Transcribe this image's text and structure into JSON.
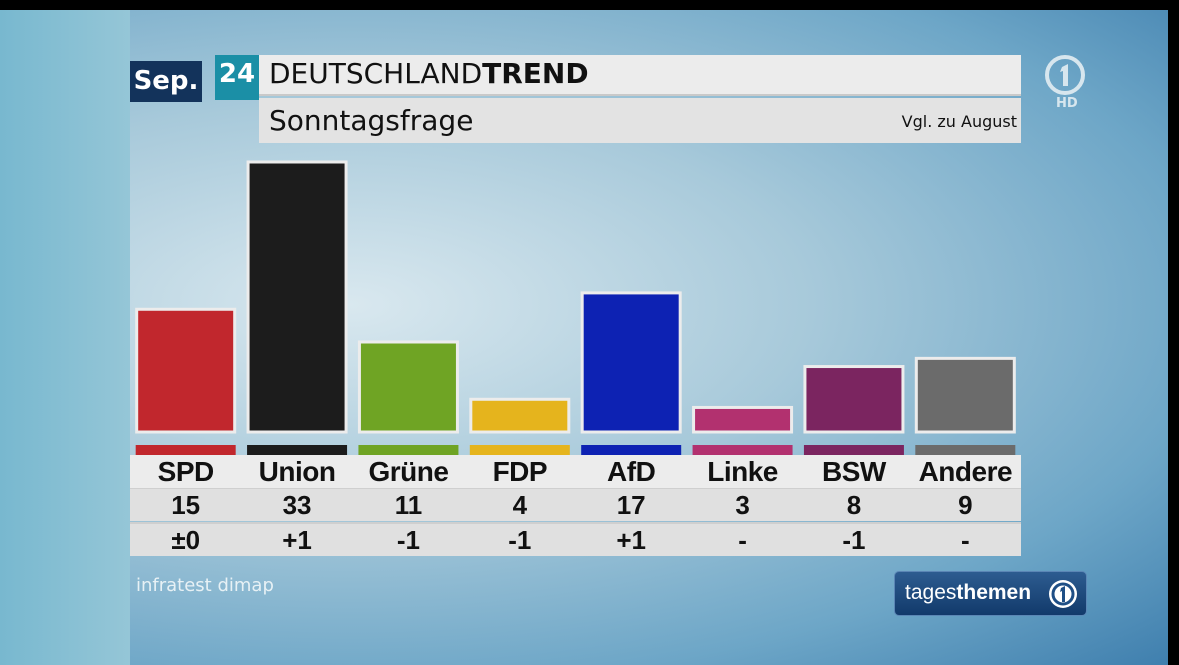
{
  "header": {
    "month": "Sep.",
    "day": "24",
    "title_light": "DEUTSCHLAND",
    "title_bold": "TREND",
    "subtitle": "Sonntagsfrage",
    "comparison": "Vgl. zu August"
  },
  "branding": {
    "channel_hd": "HD",
    "show_light": "tages",
    "show_bold": "themen",
    "source": "infratest dimap"
  },
  "chart_data": {
    "type": "bar",
    "title": "Sonntagsfrage",
    "categories": [
      "SPD",
      "Union",
      "Grüne",
      "FDP",
      "AfD",
      "Linke",
      "BSW",
      "Andere"
    ],
    "values": [
      15,
      33,
      11,
      4,
      17,
      3,
      8,
      9
    ],
    "changes": [
      "±0",
      "+1",
      "-1",
      "-1",
      "+1",
      "-",
      "-1",
      "-"
    ],
    "colors": [
      "#c1272d",
      "#1c1c1c",
      "#6fa424",
      "#e5b41d",
      "#0d22b3",
      "#b2316f",
      "#7b2560",
      "#6b6b6b"
    ],
    "ylabel": "%",
    "ylim": [
      0,
      34
    ]
  }
}
